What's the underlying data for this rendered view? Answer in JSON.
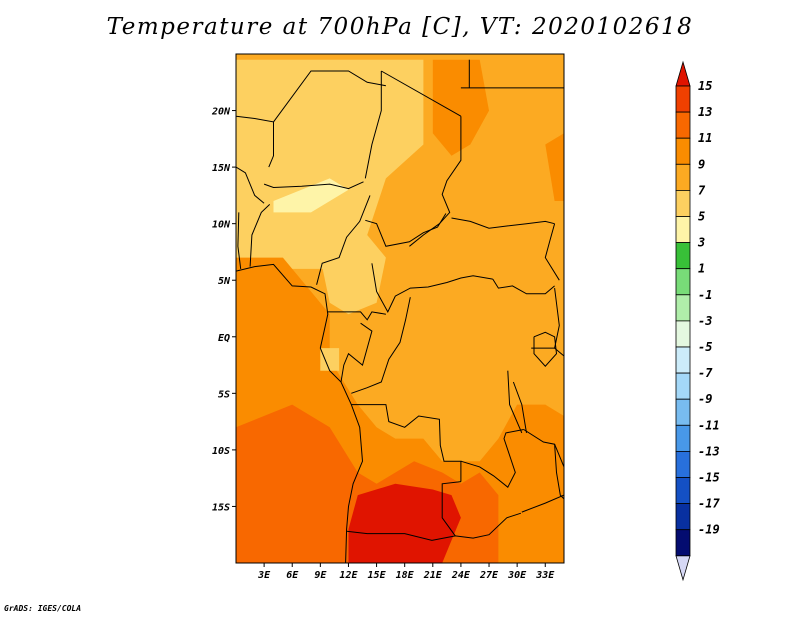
{
  "title": "Temperature at 700hPa [C], VT: 2020102618",
  "credit": "GrADS: IGES/COLA",
  "axes": {
    "lon_range": [
      0,
      35
    ],
    "lat_range": [
      -20,
      25
    ],
    "x_ticks": [
      {
        "lon": 3,
        "label": "3E"
      },
      {
        "lon": 6,
        "label": "6E"
      },
      {
        "lon": 9,
        "label": "9E"
      },
      {
        "lon": 12,
        "label": "12E"
      },
      {
        "lon": 15,
        "label": "15E"
      },
      {
        "lon": 18,
        "label": "18E"
      },
      {
        "lon": 21,
        "label": "21E"
      },
      {
        "lon": 24,
        "label": "24E"
      },
      {
        "lon": 27,
        "label": "27E"
      },
      {
        "lon": 30,
        "label": "30E"
      },
      {
        "lon": 33,
        "label": "33E"
      }
    ],
    "y_ticks": [
      {
        "lat": 20,
        "label": "20N"
      },
      {
        "lat": 15,
        "label": "15N"
      },
      {
        "lat": 10,
        "label": "10N"
      },
      {
        "lat": 5,
        "label": "5N"
      },
      {
        "lat": 0,
        "label": "EQ"
      },
      {
        "lat": -5,
        "label": "5S"
      },
      {
        "lat": -10,
        "label": "10S"
      },
      {
        "lat": -15,
        "label": "15S"
      }
    ]
  },
  "colorbar": {
    "labels": [
      "15",
      "13",
      "11",
      "9",
      "7",
      "5",
      "3",
      "1",
      "-1",
      "-3",
      "-5",
      "-7",
      "-9",
      "-11",
      "-13",
      "-15",
      "-17",
      "-19"
    ],
    "top_color": "#e01400",
    "bottom_color": "#d6d8f5",
    "colors": [
      "#f04000",
      "#f86800",
      "#fa8c00",
      "#fcaa22",
      "#fdd060",
      "#fef4a8",
      "#38c038",
      "#78dc78",
      "#b0eeaa",
      "#e4f8e0",
      "#ccecfa",
      "#a4d8f8",
      "#78bcf0",
      "#4898e8",
      "#2870dc",
      "#1450c4",
      "#0830a0",
      "#040c70"
    ]
  },
  "chart_data": {
    "type": "heatmap",
    "title": "Temperature at 700hPa [C], VT: 2020102618",
    "variable": "Temperature at 700hPa",
    "units": "C",
    "valid_time": "2020102618",
    "lon_range": [
      0,
      35
    ],
    "lat_range": [
      -20,
      25
    ],
    "levels": [
      -19,
      -17,
      -15,
      -13,
      -11,
      -9,
      -7,
      -5,
      -3,
      -1,
      1,
      3,
      5,
      7,
      9,
      11,
      13,
      15
    ],
    "fill_colors": {
      "5-7": "#fdd060",
      "7-9": "#fcaa22",
      "9-11": "#fa8c00",
      "11-13": "#f86800",
      "13-15": "#f04000",
      ">15": "#e01400"
    },
    "regions": [
      {
        "name": "background",
        "value": 9.5
      },
      {
        "name": "sahel-warm-band",
        "value": 7.8,
        "poly": [
          [
            0,
            24.5
          ],
          [
            20,
            24.5
          ],
          [
            20,
            17
          ],
          [
            16,
            14
          ],
          [
            14,
            9
          ],
          [
            10,
            6
          ],
          [
            0,
            6
          ]
        ]
      },
      {
        "name": "central-cool-patch",
        "value": 7.8,
        "poly": [
          [
            9,
            7
          ],
          [
            14,
            9
          ],
          [
            16,
            7
          ],
          [
            15,
            3
          ],
          [
            12,
            2
          ],
          [
            10,
            3
          ]
        ]
      },
      {
        "name": "niger-cool-streak",
        "value": 5.8,
        "poly": [
          [
            4,
            12
          ],
          [
            10,
            14
          ],
          [
            12,
            13
          ],
          [
            8,
            11
          ],
          [
            4,
            11
          ]
        ]
      },
      {
        "name": "sahara-patch",
        "value": 7.8,
        "poly": [
          [
            0,
            20
          ],
          [
            5,
            21
          ],
          [
            6,
            18
          ],
          [
            3,
            16
          ],
          [
            0,
            17
          ]
        ]
      },
      {
        "name": "ne-warm",
        "value": 11.5,
        "poly": [
          [
            21,
            24.5
          ],
          [
            26,
            24.5
          ],
          [
            27,
            20
          ],
          [
            25,
            17
          ],
          [
            23,
            16
          ],
          [
            21,
            18
          ]
        ]
      },
      {
        "name": "red-sea-warm",
        "value": 11.5,
        "poly": [
          [
            33,
            17
          ],
          [
            35,
            18
          ],
          [
            35,
            12
          ],
          [
            34,
            12
          ]
        ]
      },
      {
        "name": "gulf-guinea-warm",
        "value": 11.5,
        "poly": [
          [
            0,
            7
          ],
          [
            5,
            7
          ],
          [
            8,
            4
          ],
          [
            10,
            2
          ],
          [
            10,
            -2
          ],
          [
            13,
            -6
          ],
          [
            15,
            -8
          ],
          [
            17,
            -9
          ],
          [
            20,
            -9
          ],
          [
            22,
            -11
          ],
          [
            26,
            -11
          ],
          [
            28,
            -9
          ],
          [
            30,
            -6
          ],
          [
            33,
            -6
          ],
          [
            35,
            -9
          ],
          [
            35,
            -20
          ],
          [
            0,
            -20
          ]
        ]
      },
      {
        "name": "congo-interior",
        "value": 9.5,
        "poly": [
          [
            17,
            1
          ],
          [
            20,
            3
          ],
          [
            24,
            2
          ],
          [
            26,
            -2
          ],
          [
            28,
            -7
          ],
          [
            25,
            -9
          ],
          [
            21,
            -10
          ],
          [
            19,
            -8
          ],
          [
            17,
            -5
          ]
        ]
      },
      {
        "name": "cameroon-patch",
        "value": 7.8,
        "poly": [
          [
            9,
            -1
          ],
          [
            11,
            -1
          ],
          [
            11,
            -3
          ],
          [
            9,
            -3
          ]
        ]
      },
      {
        "name": "southern-hot",
        "value": 13.5,
        "poly": [
          [
            0,
            -8
          ],
          [
            6,
            -6
          ],
          [
            10,
            -8
          ],
          [
            13,
            -12
          ],
          [
            15,
            -13
          ],
          [
            19,
            -11
          ],
          [
            22,
            -12
          ],
          [
            24,
            -13
          ],
          [
            26,
            -12
          ],
          [
            28,
            -14
          ],
          [
            28,
            -20
          ],
          [
            0,
            -20
          ]
        ]
      },
      {
        "name": "angola-core",
        "value": 15.5,
        "poly": [
          [
            13,
            -14
          ],
          [
            17,
            -13
          ],
          [
            21,
            -13.5
          ],
          [
            23,
            -14
          ],
          [
            24,
            -16
          ],
          [
            23,
            -18
          ],
          [
            22,
            -20
          ],
          [
            12,
            -20
          ],
          [
            12,
            -17
          ]
        ]
      },
      {
        "name": "tanzania-warm",
        "value": 11.5,
        "poly": [
          [
            29,
            -8
          ],
          [
            33,
            -6
          ],
          [
            35,
            -7
          ],
          [
            35,
            -14
          ],
          [
            31,
            -15
          ],
          [
            29,
            -12
          ]
        ]
      }
    ]
  }
}
